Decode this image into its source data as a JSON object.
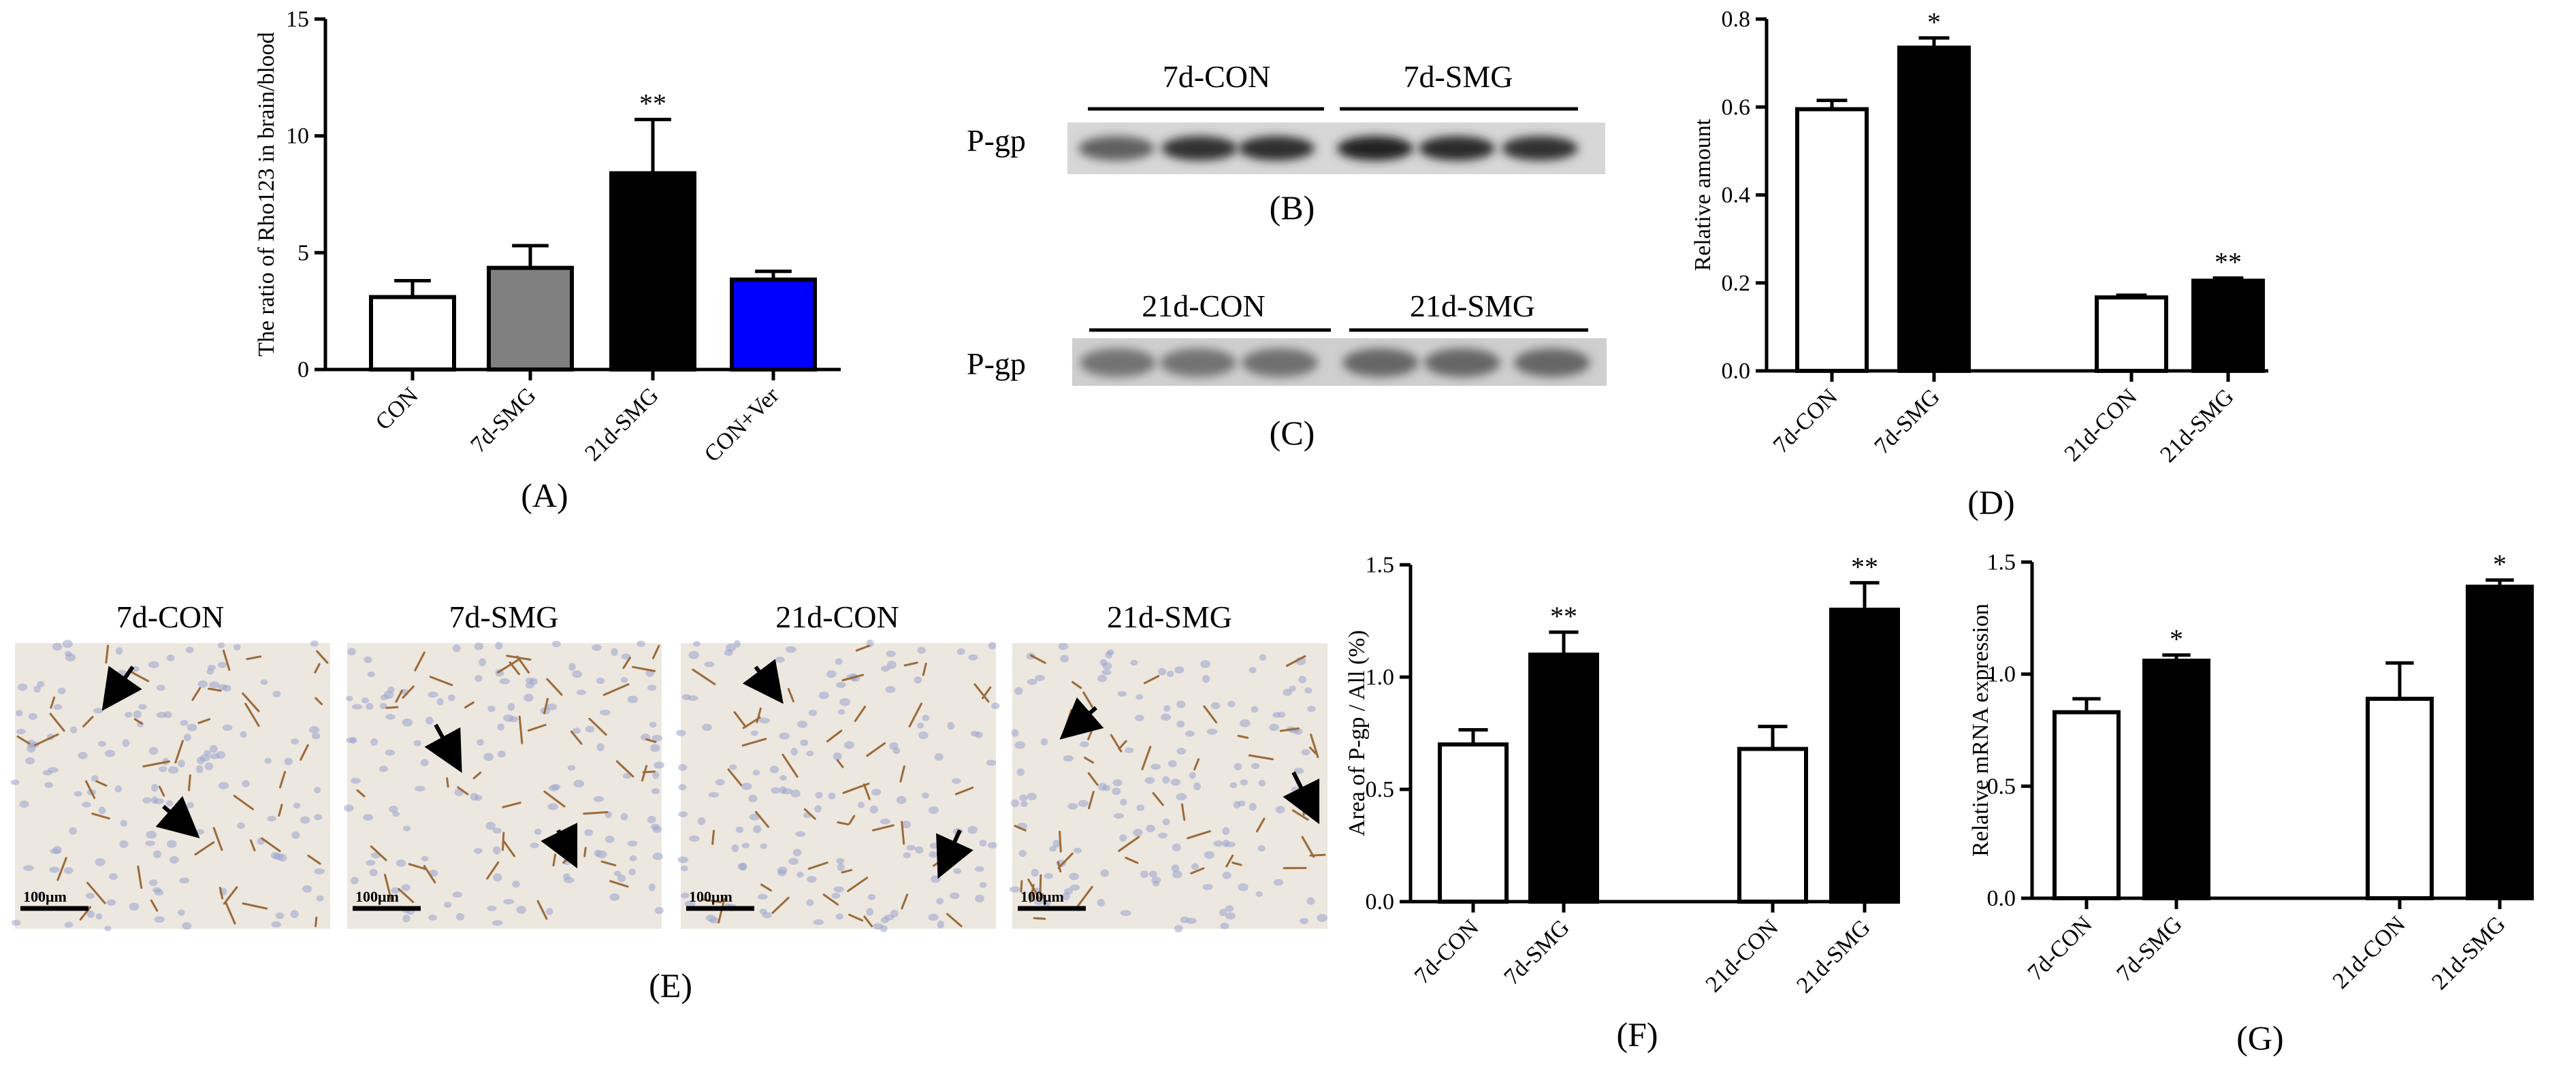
{
  "colors": {
    "white_bar": "#ffffff",
    "gray_bar": "#808080",
    "black_bar": "#000000",
    "blue_bar": "#0000ff",
    "tissue_bg": "#ece7df",
    "vessel_brown": "#9b6a3a",
    "nucleus_blue": "#9aa4cc"
  },
  "chart_data": [
    {
      "panel": "(A)",
      "type": "bar",
      "ylabel": "The ratio of Rho123 in brain/blood",
      "ylim": [
        0,
        15
      ],
      "yticks": [
        "0",
        "5",
        "10",
        "15"
      ],
      "categories": [
        "CON",
        "7d-SMG",
        "21d-SMG",
        "CON+Ver"
      ],
      "values": [
        3.1,
        4.35,
        8.4,
        3.85
      ],
      "errors": [
        0.7,
        0.95,
        2.3,
        0.35
      ],
      "bar_colors": [
        "white",
        "gray",
        "black",
        "blue"
      ],
      "significance": [
        "",
        "",
        "**",
        ""
      ]
    },
    {
      "panel": "(D)",
      "type": "bar",
      "ylabel": "Relative amount",
      "ylim": [
        0.0,
        0.8
      ],
      "yticks": [
        "0.0",
        "0.2",
        "0.4",
        "0.6",
        "0.8"
      ],
      "categories": [
        "7d-CON",
        "7d-SMG",
        "21d-CON",
        "21d-SMG"
      ],
      "values": [
        0.595,
        0.735,
        0.167,
        0.205
      ],
      "errors": [
        0.02,
        0.022,
        0.005,
        0.006
      ],
      "bar_colors": [
        "white",
        "black",
        "white",
        "black"
      ],
      "significance": [
        "",
        "*",
        "",
        "**"
      ]
    },
    {
      "panel": "(F)",
      "type": "bar",
      "ylabel": "Area of P-gp / All (%)",
      "ylim": [
        0.0,
        1.5
      ],
      "yticks": [
        "0.0",
        "0.5",
        "1.0",
        "1.5"
      ],
      "categories": [
        "7d-CON",
        "7d-SMG",
        "21d-CON",
        "21d-SMG"
      ],
      "values": [
        0.7,
        1.1,
        0.68,
        1.3
      ],
      "errors": [
        0.065,
        0.1,
        0.1,
        0.12
      ],
      "bar_colors": [
        "white",
        "black",
        "white",
        "black"
      ],
      "significance": [
        "",
        "**",
        "",
        "**"
      ]
    },
    {
      "panel": "(G)",
      "type": "bar",
      "ylabel": "Relative mRNA expression",
      "ylim": [
        0.0,
        1.5
      ],
      "yticks": [
        "0.0",
        "0.5",
        "1.0",
        "1.5"
      ],
      "categories": [
        "7d-CON",
        "7d-SMG",
        "21d-CON",
        "21d-SMG"
      ],
      "values": [
        0.83,
        1.06,
        0.89,
        1.39
      ],
      "errors": [
        0.06,
        0.025,
        0.16,
        0.03
      ],
      "bar_colors": [
        "white",
        "black",
        "white",
        "black"
      ],
      "significance": [
        "",
        "*",
        "",
        "*"
      ]
    }
  ],
  "blots": [
    {
      "panel": "(B)",
      "protein": "P-gp",
      "group_labels": [
        "7d-CON",
        "7d-SMG"
      ],
      "band_intensity": [
        0.62,
        0.8,
        0.82,
        0.86,
        0.84,
        0.8
      ]
    },
    {
      "panel": "(C)",
      "protein": "P-gp",
      "group_labels": [
        "21d-CON",
        "21d-SMG"
      ],
      "band_intensity": [
        0.55,
        0.55,
        0.56,
        0.6,
        0.6,
        0.6
      ]
    }
  ],
  "micrographs": {
    "panel": "(E)",
    "titles": [
      "7d-CON",
      "7d-SMG",
      "21d-CON",
      "21d-SMG"
    ],
    "scale_bar": "100μm"
  }
}
